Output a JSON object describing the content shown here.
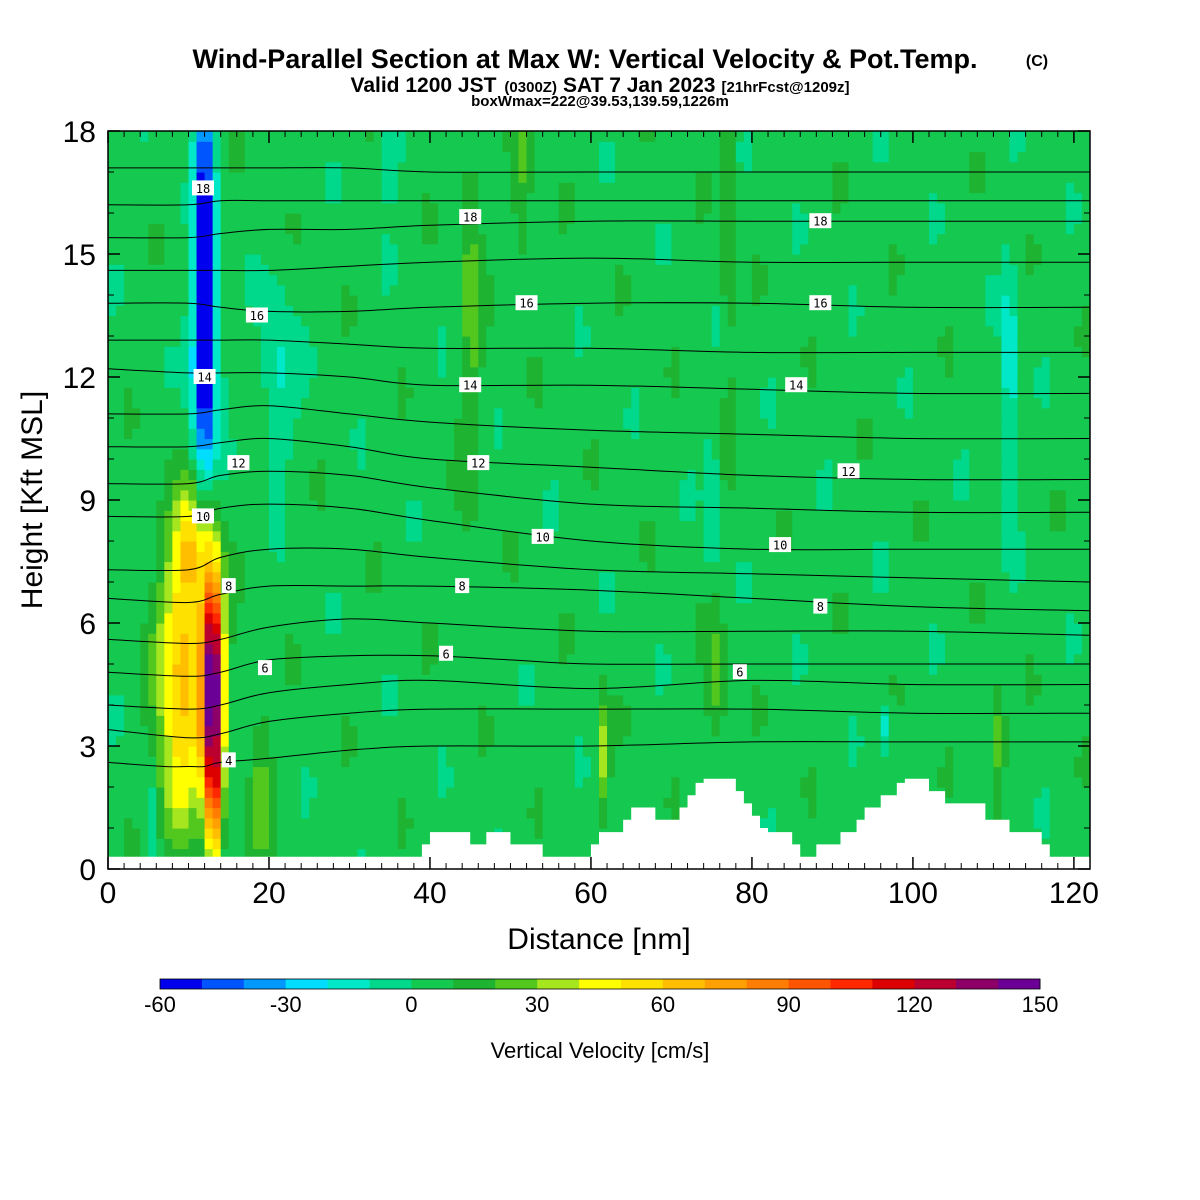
{
  "header": {
    "title": "Wind-Parallel Section at Max W: Vertical Velocity & Pot.Temp.",
    "copyright": "(C)",
    "valid_pre": "Valid 1200 JST",
    "valid_utc": "(0300Z)",
    "valid_date": "SAT 7 Jan 2023",
    "valid_fcst": "[21hrFcst@1209z]",
    "box_info": "boxWmax=222@39.53,139.59,1226m"
  },
  "chart_data": {
    "type": "heatmap",
    "xlabel": "Distance [nm]",
    "ylabel": "Height [Kft MSL]",
    "xlim": [
      0,
      122
    ],
    "ylim": [
      0,
      18
    ],
    "x_ticks": [
      0,
      20,
      40,
      60,
      80,
      100,
      120
    ],
    "y_ticks": [
      0,
      3,
      6,
      9,
      12,
      15,
      18
    ],
    "colorbar": {
      "label": "Vertical Velocity [cm/s]",
      "ticks": [
        -60,
        -30,
        0,
        30,
        60,
        90,
        120,
        150
      ],
      "bounds": [
        -60,
        -50,
        -40,
        -30,
        -20,
        -10,
        0,
        10,
        20,
        30,
        40,
        50,
        60,
        70,
        80,
        90,
        100,
        110,
        120,
        130,
        140,
        150
      ],
      "colors": [
        "#0000ee",
        "#0055ff",
        "#0099ff",
        "#00ddff",
        "#00e8c8",
        "#00d88c",
        "#14c850",
        "#1eb432",
        "#52c81e",
        "#a6e61e",
        "#ffff00",
        "#ffe100",
        "#ffbe00",
        "#ffa000",
        "#ff7d00",
        "#ff5500",
        "#ff2800",
        "#dd0000",
        "#bb0030",
        "#8c0068",
        "#6a0096"
      ]
    },
    "background_w": 5,
    "updraft_features": [
      {
        "x": 9.5,
        "z": 5.0,
        "w": 60,
        "sx": 2.2,
        "sz": 2.2
      },
      {
        "x": 13.0,
        "z": 4.5,
        "w": 145,
        "sx": 0.9,
        "sz": 2.0
      },
      {
        "x": 10.5,
        "z": 8.0,
        "w": 35,
        "sx": 1.5,
        "sz": 1.0
      },
      {
        "x": 8.5,
        "z": 1.8,
        "w": 25,
        "sx": 1.6,
        "sz": 1.0
      },
      {
        "x": 13.2,
        "z": 1.5,
        "w": 50,
        "sx": 0.6,
        "sz": 1.0
      },
      {
        "x": 61.5,
        "z": 2.8,
        "w": 32,
        "sx": 0.5,
        "sz": 0.9
      },
      {
        "x": 75.5,
        "z": 4.5,
        "w": 20,
        "sx": 0.8,
        "sz": 1.2
      },
      {
        "x": 110.5,
        "z": 3.2,
        "w": 25,
        "sx": 0.7,
        "sz": 0.9
      },
      {
        "x": 45.0,
        "z": 14.0,
        "w": 18,
        "sx": 0.9,
        "sz": 3.5
      },
      {
        "x": 51.5,
        "z": 16.5,
        "w": 15,
        "sx": 0.8,
        "sz": 2.0
      },
      {
        "x": 77.0,
        "z": 16.0,
        "w": 17,
        "sx": 0.6,
        "sz": 3.0
      },
      {
        "x": 19.0,
        "z": 2.0,
        "w": 18,
        "sx": 1.0,
        "sz": 1.5
      }
    ],
    "downdraft_features": [
      {
        "x": 12.0,
        "z": 15.5,
        "w": -62,
        "sx": 0.9,
        "sz": 3.5
      },
      {
        "x": 12.0,
        "z": 12.0,
        "w": -35,
        "sx": 1.2,
        "sz": 2.0
      },
      {
        "x": 21.0,
        "z": 12.0,
        "w": -18,
        "sx": 1.5,
        "sz": 1.5
      },
      {
        "x": 5.5,
        "z": 1.2,
        "w": -18,
        "sx": 0.5,
        "sz": 0.8
      },
      {
        "x": 75.0,
        "z": 9.0,
        "w": -17,
        "sx": 0.6,
        "sz": 1.2
      },
      {
        "x": 112.0,
        "z": 12.0,
        "w": -25,
        "sx": 0.7,
        "sz": 2.0
      },
      {
        "x": 96.5,
        "z": 3.5,
        "w": -20,
        "sx": 0.5,
        "sz": 0.5
      },
      {
        "x": 35.0,
        "z": 17.5,
        "w": -15,
        "sx": 1.0,
        "sz": 0.8
      }
    ],
    "terrain": [
      [
        0,
        0.3
      ],
      [
        4,
        0.3
      ],
      [
        38,
        0.3
      ],
      [
        39,
        0.6
      ],
      [
        40,
        0.9
      ],
      [
        44,
        0.9
      ],
      [
        45,
        0.6
      ],
      [
        46,
        0.6
      ],
      [
        47,
        0.9
      ],
      [
        49,
        0.9
      ],
      [
        50,
        0.6
      ],
      [
        53,
        0.6
      ],
      [
        54,
        0.3
      ],
      [
        59,
        0.3
      ],
      [
        60,
        0.6
      ],
      [
        61,
        0.9
      ],
      [
        63,
        0.9
      ],
      [
        64,
        1.2
      ],
      [
        65,
        1.5
      ],
      [
        67,
        1.5
      ],
      [
        68,
        1.2
      ],
      [
        70,
        1.2
      ],
      [
        71,
        1.5
      ],
      [
        72,
        1.8
      ],
      [
        73,
        2.1
      ],
      [
        74,
        2.2
      ],
      [
        77,
        2.2
      ],
      [
        78,
        1.9
      ],
      [
        79,
        1.6
      ],
      [
        80,
        1.3
      ],
      [
        81,
        1.0
      ],
      [
        82,
        0.9
      ],
      [
        85,
        0.6
      ],
      [
        86,
        0.3
      ],
      [
        87,
        0.3
      ],
      [
        88,
        0.6
      ],
      [
        90,
        0.6
      ],
      [
        91,
        0.9
      ],
      [
        93,
        1.2
      ],
      [
        94,
        1.5
      ],
      [
        96,
        1.8
      ],
      [
        98,
        2.1
      ],
      [
        99,
        2.2
      ],
      [
        101,
        2.2
      ],
      [
        102,
        1.9
      ],
      [
        104,
        1.6
      ],
      [
        108,
        1.6
      ],
      [
        109,
        1.2
      ],
      [
        111,
        1.2
      ],
      [
        112,
        0.9
      ],
      [
        115,
        0.9
      ],
      [
        116,
        0.6
      ],
      [
        117,
        0.3
      ],
      [
        122,
        0.3
      ]
    ],
    "theta_contours": {
      "label_values": [
        4,
        6,
        8,
        10,
        12,
        14,
        16,
        18
      ],
      "levels": [
        {
          "label": "4",
          "x": [
            0,
            7,
            10,
            12,
            14,
            20,
            30,
            40,
            60,
            80,
            100,
            122
          ],
          "z": [
            2.6,
            2.5,
            2.5,
            2.5,
            2.6,
            2.7,
            2.9,
            3.0,
            3.0,
            3.1,
            3.1,
            3.1
          ],
          "label_pos": [
            15,
            2.65
          ]
        },
        {
          "label": "",
          "x": [
            0,
            10,
            14,
            20,
            30,
            40,
            60,
            80,
            100,
            122
          ],
          "z": [
            3.4,
            3.2,
            3.3,
            3.6,
            3.8,
            3.9,
            3.9,
            3.9,
            3.8,
            3.8
          ]
        },
        {
          "label": "",
          "x": [
            0,
            10,
            14,
            20,
            30,
            40,
            60,
            80,
            100,
            122
          ],
          "z": [
            4.0,
            3.9,
            4.0,
            4.3,
            4.5,
            4.6,
            4.4,
            4.6,
            4.5,
            4.5
          ]
        },
        {
          "label": "6",
          "x": [
            0,
            10,
            14,
            20,
            30,
            40,
            50,
            60,
            80,
            100,
            122
          ],
          "z": [
            4.8,
            4.7,
            4.8,
            5.1,
            5.2,
            5.2,
            5.1,
            5.0,
            5.0,
            5.0,
            5.0
          ],
          "label_pos": [
            42,
            5.25
          ]
        },
        {
          "label": "",
          "x": [
            0,
            10,
            14,
            20,
            30,
            40,
            60,
            80,
            100,
            122
          ],
          "z": [
            5.6,
            5.5,
            5.6,
            5.9,
            6.1,
            6.0,
            5.8,
            5.8,
            5.8,
            5.7
          ]
        },
        {
          "label": "8",
          "x": [
            0,
            10,
            14,
            20,
            30,
            40,
            60,
            80,
            100,
            122
          ],
          "z": [
            6.6,
            6.5,
            6.7,
            6.9,
            6.9,
            6.9,
            6.8,
            6.6,
            6.4,
            6.3
          ],
          "label_pos": [
            44,
            6.9
          ]
        },
        {
          "label": "",
          "x": [
            0,
            10,
            14,
            20,
            30,
            40,
            60,
            80,
            100,
            122
          ],
          "z": [
            7.3,
            7.3,
            7.6,
            7.8,
            7.8,
            7.6,
            7.3,
            7.2,
            7.1,
            7.0
          ]
        },
        {
          "label": "10",
          "x": [
            0,
            10,
            14,
            20,
            30,
            40,
            60,
            80,
            100,
            122
          ],
          "z": [
            8.6,
            8.6,
            8.8,
            8.9,
            8.8,
            8.5,
            8.0,
            7.8,
            7.8,
            7.8
          ],
          "label_pos": [
            54,
            8.1
          ]
        },
        {
          "label": "",
          "x": [
            0,
            10,
            14,
            20,
            30,
            40,
            60,
            80,
            100,
            122
          ],
          "z": [
            9.4,
            9.4,
            9.6,
            9.7,
            9.6,
            9.3,
            8.9,
            8.8,
            8.7,
            8.7
          ]
        },
        {
          "label": "12",
          "x": [
            0,
            10,
            14,
            20,
            30,
            40,
            60,
            80,
            100,
            122
          ],
          "z": [
            10.3,
            10.3,
            10.4,
            10.5,
            10.3,
            10.0,
            9.8,
            9.6,
            9.5,
            9.5
          ],
          "label_pos": [
            46,
            9.9
          ]
        },
        {
          "label": "",
          "x": [
            0,
            10,
            14,
            20,
            30,
            40,
            60,
            80,
            100,
            122
          ],
          "z": [
            11.1,
            11.1,
            11.2,
            11.3,
            11.1,
            10.9,
            10.7,
            10.6,
            10.5,
            10.5
          ]
        },
        {
          "label": "14",
          "x": [
            0,
            10,
            14,
            20,
            30,
            40,
            60,
            80,
            100,
            122
          ],
          "z": [
            12.2,
            12.1,
            12.1,
            12.1,
            12.0,
            11.8,
            11.8,
            11.7,
            11.6,
            11.6
          ],
          "label_pos": [
            45,
            11.8
          ]
        },
        {
          "label": "",
          "x": [
            0,
            10,
            14,
            20,
            30,
            40,
            60,
            80,
            100,
            122
          ],
          "z": [
            12.9,
            12.9,
            12.9,
            12.9,
            12.8,
            12.7,
            12.7,
            12.6,
            12.6,
            12.6
          ]
        },
        {
          "label": "16",
          "x": [
            0,
            10,
            14,
            20,
            30,
            40,
            60,
            80,
            100,
            122
          ],
          "z": [
            13.8,
            13.8,
            13.7,
            13.6,
            13.6,
            13.7,
            13.8,
            13.8,
            13.7,
            13.7
          ],
          "label_pos": [
            52,
            13.8
          ]
        },
        {
          "label": "",
          "x": [
            0,
            10,
            14,
            20,
            30,
            40,
            60,
            80,
            100,
            122
          ],
          "z": [
            14.6,
            14.6,
            14.6,
            14.6,
            14.7,
            14.8,
            14.9,
            14.8,
            14.8,
            14.8
          ]
        },
        {
          "label": "",
          "x": [
            0,
            10,
            14,
            20,
            30,
            40,
            60,
            80,
            100,
            122
          ],
          "z": [
            15.4,
            15.4,
            15.5,
            15.6,
            15.6,
            15.7,
            15.8,
            15.8,
            15.8,
            15.8
          ]
        },
        {
          "label": "18",
          "x": [
            0,
            10,
            14,
            20,
            30,
            40,
            60,
            80,
            100,
            122
          ],
          "z": [
            16.2,
            16.2,
            16.3,
            16.3,
            16.3,
            16.3,
            16.3,
            16.3,
            16.3,
            16.3
          ],
          "label_pos": [
            45,
            15.9
          ]
        },
        {
          "label": "",
          "x": [
            0,
            10,
            14,
            20,
            30,
            40,
            60,
            80,
            100,
            122
          ],
          "z": [
            17.1,
            17.1,
            17.1,
            17.1,
            17.1,
            17.0,
            17.0,
            17.0,
            17.0,
            17.0
          ]
        }
      ],
      "extra_labels": [
        {
          "label": "18",
          "x": 11.8,
          "z": 16.6
        },
        {
          "label": "16",
          "x": 18.5,
          "z": 13.5
        },
        {
          "label": "14",
          "x": 12.0,
          "z": 12.0
        },
        {
          "label": "12",
          "x": 16.2,
          "z": 9.9
        },
        {
          "label": "10",
          "x": 11.8,
          "z": 8.6
        },
        {
          "label": "8",
          "x": 15.0,
          "z": 6.9
        },
        {
          "label": "6",
          "x": 19.5,
          "z": 4.9
        },
        {
          "label": "6",
          "x": 78.5,
          "z": 4.8
        },
        {
          "label": "8",
          "x": 88.5,
          "z": 6.4
        },
        {
          "label": "10",
          "x": 83.5,
          "z": 7.9
        },
        {
          "label": "12",
          "x": 92.0,
          "z": 9.7
        },
        {
          "label": "14",
          "x": 85.5,
          "z": 11.8
        },
        {
          "label": "16",
          "x": 88.5,
          "z": 13.8
        },
        {
          "label": "18",
          "x": 88.5,
          "z": 15.8
        }
      ]
    }
  }
}
